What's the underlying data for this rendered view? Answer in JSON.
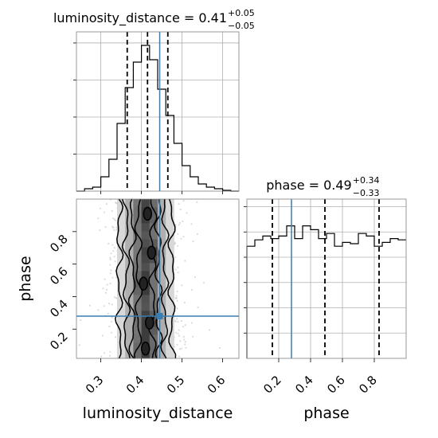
{
  "chart_data": {
    "type": "corner",
    "parameters": [
      "luminosity_distance",
      "phase"
    ],
    "colors": {
      "truth": "#3a7db0",
      "hist": "#000000",
      "grid": "#b0b0b0",
      "frame": "#808080"
    },
    "panels": [
      {
        "id": "luminosity_distance-marginal",
        "type": "step-histogram",
        "title": {
          "label": "luminosity_distance = 0.41",
          "sup": "+0.05",
          "sub": "−0.05"
        },
        "xlim": [
          0.24,
          0.64
        ],
        "x_edges": [
          0.24,
          0.26,
          0.28,
          0.3,
          0.32,
          0.34,
          0.36,
          0.38,
          0.4,
          0.42,
          0.44,
          0.46,
          0.48,
          0.5,
          0.52,
          0.54,
          0.56,
          0.58,
          0.6,
          0.62,
          0.64
        ],
        "counts": [
          0.0,
          0.3,
          0.5,
          1.8,
          4.0,
          8.5,
          13.0,
          16.2,
          18.3,
          16.5,
          12.8,
          9.5,
          6.0,
          3.2,
          1.8,
          0.9,
          0.5,
          0.3,
          0.1,
          0.0
        ],
        "ylim": [
          0,
          20
        ],
        "quantiles": [
          0.365,
          0.415,
          0.465
        ],
        "truth": 0.445,
        "xticks": [
          0.3,
          0.4,
          0.5,
          0.6
        ],
        "yticks_count": 4
      },
      {
        "id": "phase-marginal",
        "type": "step-histogram",
        "title": {
          "label": "phase = 0.49",
          "sup": "+0.34",
          "sub": "−0.33"
        },
        "xlim": [
          0.0,
          1.0
        ],
        "x_edges": [
          0.0,
          0.05,
          0.1,
          0.15,
          0.2,
          0.25,
          0.3,
          0.35,
          0.4,
          0.45,
          0.5,
          0.55,
          0.6,
          0.65,
          0.7,
          0.75,
          0.8,
          0.85,
          0.9,
          0.95,
          1.0
        ],
        "counts": [
          0.88,
          0.93,
          0.96,
          0.94,
          0.96,
          1.04,
          0.94,
          1.04,
          1.01,
          0.94,
          0.98,
          0.88,
          0.91,
          0.9,
          0.98,
          0.96,
          0.88,
          0.91,
          0.94,
          0.93
        ],
        "ylim": [
          0,
          1.25
        ],
        "quantiles": [
          0.16,
          0.49,
          0.83
        ],
        "truth": 0.28,
        "xticks": [
          0.2,
          0.4,
          0.6,
          0.8
        ],
        "yticks_count": 6
      },
      {
        "id": "joint-density",
        "type": "2d-density",
        "xlim": [
          0.24,
          0.64
        ],
        "ylim": [
          0.02,
          1.0
        ],
        "truth": {
          "x": 0.445,
          "y": 0.28
        },
        "x_label": "luminosity_distance",
        "y_label": "phase",
        "xticks": [
          0.3,
          0.4,
          0.5,
          0.6
        ],
        "yticks": [
          0.2,
          0.4,
          0.6,
          0.8
        ],
        "x_center": 0.41,
        "x_sigma": 0.03,
        "contour_levels": [
          0.12,
          0.32,
          0.6,
          0.85
        ],
        "dense_spots": [
          [
            0.415,
            0.91
          ],
          [
            0.425,
            0.67
          ],
          [
            0.405,
            0.48
          ],
          [
            0.42,
            0.24
          ],
          [
            0.41,
            0.08
          ]
        ]
      }
    ],
    "tick_labels": {
      "lum_x": [
        "0.3",
        "0.4",
        "0.5",
        "0.6"
      ],
      "phase_x": [
        "0.2",
        "0.4",
        "0.6",
        "0.8"
      ],
      "phase_y": [
        "0.2",
        "0.4",
        "0.6",
        "0.8"
      ]
    }
  }
}
